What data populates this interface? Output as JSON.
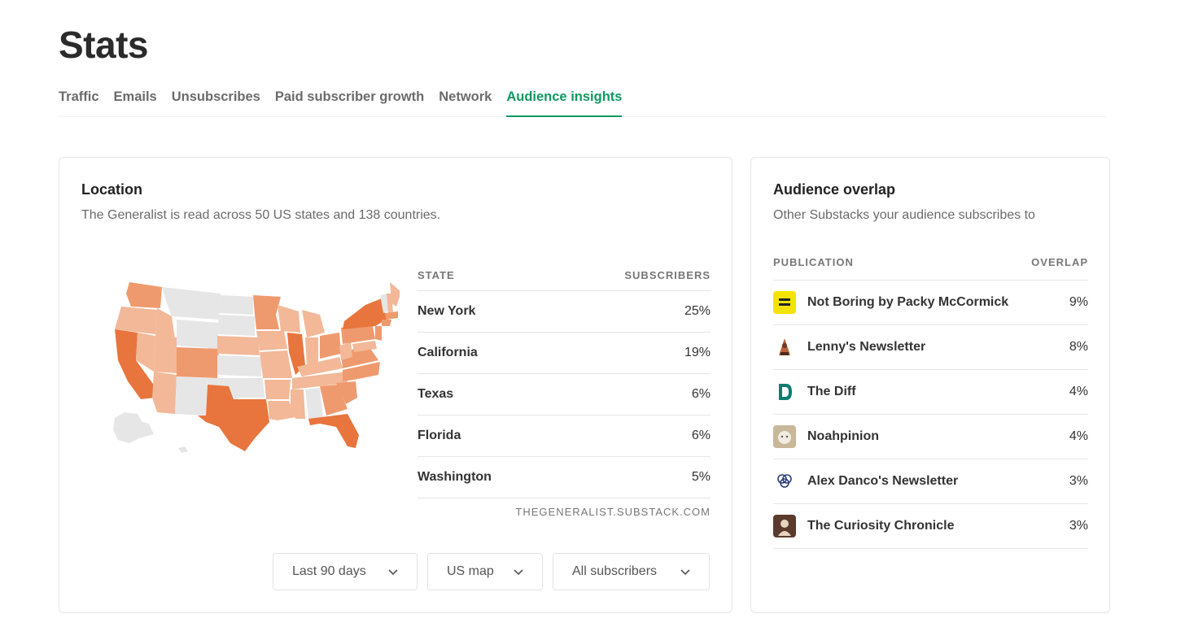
{
  "page": {
    "title": "Stats"
  },
  "tabs": [
    {
      "label": "Traffic",
      "active": false
    },
    {
      "label": "Emails",
      "active": false
    },
    {
      "label": "Unsubscribes",
      "active": false
    },
    {
      "label": "Paid subscriber growth",
      "active": false
    },
    {
      "label": "Network",
      "active": false
    },
    {
      "label": "Audience insights",
      "active": true
    }
  ],
  "location": {
    "title": "Location",
    "subtitle": "The Generalist is read across 50 US states and 138 countries.",
    "table": {
      "col_state": "STATE",
      "col_subscribers": "SUBSCRIBERS",
      "rows": [
        {
          "state": "New York",
          "pct": "25%"
        },
        {
          "state": "California",
          "pct": "19%"
        },
        {
          "state": "Texas",
          "pct": "6%"
        },
        {
          "state": "Florida",
          "pct": "6%"
        },
        {
          "state": "Washington",
          "pct": "5%"
        }
      ],
      "footer": "THEGENERALIST.SUBSTACK.COM"
    },
    "filters": {
      "period": "Last 90 days",
      "map_type": "US map",
      "audience": "All subscribers"
    },
    "map_colors": {
      "high": "#e8753d",
      "mid": "#ee9a6e",
      "low": "#f2b898",
      "none": "#e6e6e6"
    }
  },
  "overlap": {
    "title": "Audience overlap",
    "subtitle": "Other Substacks your audience subscribes to",
    "col_publication": "PUBLICATION",
    "col_overlap": "OVERLAP",
    "rows": [
      {
        "name": "Not Boring by Packy McCormick",
        "pct": "9%",
        "icon": "not-boring-logo"
      },
      {
        "name": "Lenny's Newsletter",
        "pct": "8%",
        "icon": "lenny-logo"
      },
      {
        "name": "The Diff",
        "pct": "4%",
        "icon": "the-diff-logo"
      },
      {
        "name": "Noahpinion",
        "pct": "4%",
        "icon": "noahpinion-logo"
      },
      {
        "name": "Alex Danco's Newsletter",
        "pct": "3%",
        "icon": "alex-danco-logo"
      },
      {
        "name": "The Curiosity Chronicle",
        "pct": "3%",
        "icon": "curiosity-chronicle-logo"
      }
    ]
  },
  "colors": {
    "accent": "#0f9960",
    "text_muted": "#6b6b6b",
    "border": "#e6e6e6"
  }
}
